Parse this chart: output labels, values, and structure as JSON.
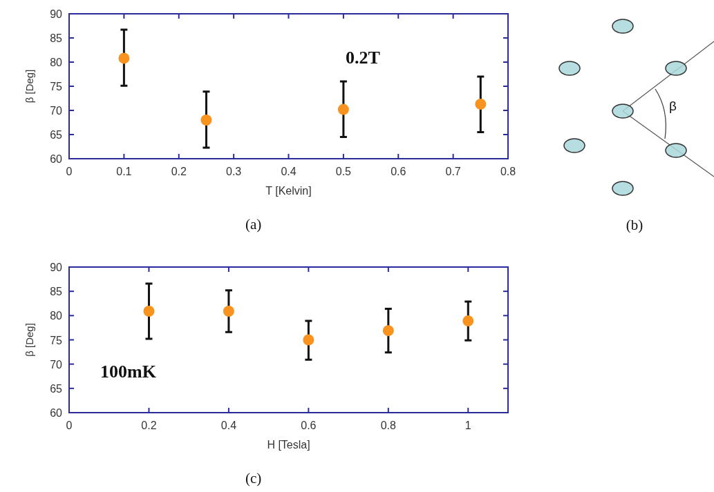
{
  "chart_data": [
    {
      "type": "scatter",
      "xlabel": "T [Kelvin]",
      "ylabel": "β [Deg]",
      "x": [
        0.1,
        0.25,
        0.5,
        0.75
      ],
      "values": [
        80.8,
        68.0,
        70.2,
        71.3
      ],
      "errors": [
        [
          75.1,
          86.7
        ],
        [
          62.3,
          73.9
        ],
        [
          64.5,
          76.0
        ],
        [
          65.5,
          77.0
        ]
      ],
      "color": "#f7931e",
      "marker": "circle",
      "xlim": [
        0,
        0.8
      ],
      "xticks": [
        0,
        0.1,
        0.2,
        0.3,
        0.4,
        0.5,
        0.6,
        0.7,
        0.8
      ],
      "ylim": [
        60,
        90
      ],
      "yticks": [
        60,
        65,
        70,
        75,
        80,
        85,
        90
      ],
      "annotations": [
        "0.2T",
        "(a)"
      ]
    },
    {
      "type": "other",
      "annotations": [
        "β",
        "(b)"
      ]
    },
    {
      "type": "scatter",
      "xlabel": "H [Tesla]",
      "ylabel": "β [Deg]",
      "x": [
        0.2,
        0.4,
        0.6,
        0.8,
        1.0
      ],
      "values": [
        80.9,
        80.9,
        75.0,
        76.9,
        78.9
      ],
      "errors": [
        [
          75.2,
          86.6
        ],
        [
          76.6,
          85.2
        ],
        [
          70.9,
          78.9
        ],
        [
          72.4,
          81.4
        ],
        [
          74.9,
          82.9
        ]
      ],
      "color": "#f7931e",
      "marker": "circle",
      "xlim": [
        0,
        1.1
      ],
      "xticks": [
        0,
        0.2,
        0.4,
        0.6,
        0.8,
        1
      ],
      "ylim": [
        60,
        90
      ],
      "yticks": [
        60,
        65,
        70,
        75,
        80,
        85,
        90
      ],
      "annotations": [
        "100mK",
        "(c)"
      ]
    }
  ]
}
